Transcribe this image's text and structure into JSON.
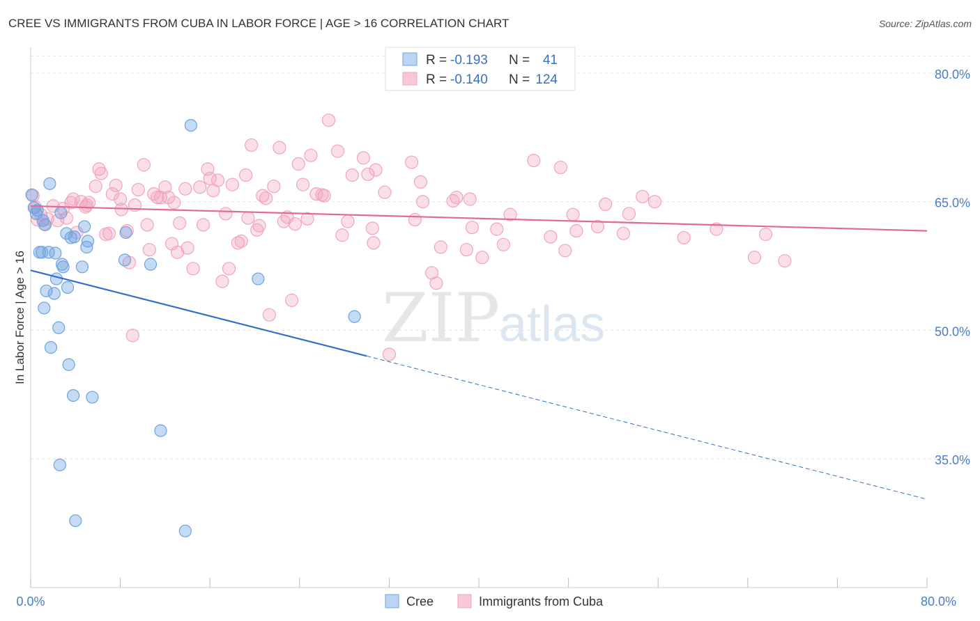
{
  "title": "CREE VS IMMIGRANTS FROM CUBA IN LABOR FORCE | AGE > 16 CORRELATION CHART",
  "source": "Source: ZipAtlas.com",
  "watermark": {
    "zip": "ZIP",
    "atlas": "atlas"
  },
  "legend": {
    "r_label": "R =",
    "n_label": "N =",
    "items": [
      {
        "name": "Cree",
        "r": "-0.193",
        "n": "41"
      },
      {
        "name": "Immigrants from Cuba",
        "r": "-0.140",
        "n": "124"
      }
    ]
  },
  "chart_data": {
    "type": "scatter",
    "title": "CREE VS IMMIGRANTS FROM CUBA IN LABOR FORCE | AGE > 16 CORRELATION CHART",
    "xlabel": "",
    "ylabel": "In Labor Force | Age > 16",
    "xlim": [
      0,
      80
    ],
    "ylim": [
      20,
      83
    ],
    "x_tick_labels": [
      "0.0%",
      "80.0%"
    ],
    "y_ticks": [
      35,
      50,
      65,
      80
    ],
    "y_tick_labels": [
      "35.0%",
      "50.0%",
      "65.0%",
      "80.0%"
    ],
    "colors": {
      "cree": "#6fa3e0",
      "cree_line": "#2f6fcd",
      "cuba": "#f2a3bd",
      "cuba_line": "#e06a94",
      "grid": "#e3e3e3",
      "tick": "#4a7cc9"
    },
    "series": [
      {
        "name": "Cree",
        "r": -0.193,
        "n": 41,
        "trend": {
          "x0": 0,
          "y0": 57.0,
          "x1": 30,
          "y1": 47.0,
          "dash_to_x": 80,
          "dash_to_y": 30.3
        },
        "points": [
          [
            0.1,
            65.8
          ],
          [
            0.3,
            64.3
          ],
          [
            0.5,
            63.6
          ],
          [
            0.8,
            59.1
          ],
          [
            1.0,
            59.1
          ],
          [
            1.2,
            52.6
          ],
          [
            1.3,
            62.3
          ],
          [
            1.4,
            54.6
          ],
          [
            1.6,
            59.1
          ],
          [
            1.7,
            67.1
          ],
          [
            1.8,
            48.0
          ],
          [
            2.1,
            54.3
          ],
          [
            2.2,
            59.0
          ],
          [
            2.3,
            56.0
          ],
          [
            2.5,
            50.3
          ],
          [
            2.6,
            34.3
          ],
          [
            2.7,
            63.7
          ],
          [
            2.8,
            57.7
          ],
          [
            2.9,
            57.4
          ],
          [
            3.2,
            61.3
          ],
          [
            3.3,
            55.0
          ],
          [
            3.4,
            46.0
          ],
          [
            3.6,
            60.8
          ],
          [
            3.8,
            42.4
          ],
          [
            4.0,
            27.8
          ],
          [
            4.6,
            57.4
          ],
          [
            4.8,
            62.1
          ],
          [
            5.0,
            59.7
          ],
          [
            5.1,
            60.4
          ],
          [
            5.5,
            42.2
          ],
          [
            8.4,
            58.2
          ],
          [
            8.5,
            61.4
          ],
          [
            10.7,
            57.7
          ],
          [
            11.6,
            38.3
          ],
          [
            13.8,
            26.6
          ],
          [
            14.3,
            73.9
          ],
          [
            20.3,
            56.0
          ],
          [
            28.9,
            51.6
          ],
          [
            0.6,
            64.0
          ],
          [
            1.1,
            62.8
          ],
          [
            3.9,
            60.9
          ]
        ]
      },
      {
        "name": "Immigrants from Cuba",
        "r": -0.14,
        "n": 124,
        "trend": {
          "x0": 0,
          "y0": 64.5,
          "x1": 80,
          "y1": 61.6
        },
        "points": [
          [
            0.2,
            65.7
          ],
          [
            0.4,
            64.4
          ],
          [
            0.6,
            62.9
          ],
          [
            0.9,
            63.5
          ],
          [
            1.2,
            62.4
          ],
          [
            1.5,
            63.0
          ],
          [
            2.0,
            64.5
          ],
          [
            2.4,
            62.8
          ],
          [
            2.9,
            64.2
          ],
          [
            3.2,
            63.1
          ],
          [
            3.6,
            64.9
          ],
          [
            3.8,
            65.3
          ],
          [
            4.1,
            61.4
          ],
          [
            4.5,
            65.0
          ],
          [
            4.9,
            64.4
          ],
          [
            5.2,
            64.9
          ],
          [
            5.8,
            66.8
          ],
          [
            6.1,
            68.8
          ],
          [
            6.3,
            68.3
          ],
          [
            6.7,
            61.2
          ],
          [
            7.0,
            61.3
          ],
          [
            7.3,
            65.9
          ],
          [
            7.6,
            66.9
          ],
          [
            8.0,
            65.3
          ],
          [
            8.1,
            64.1
          ],
          [
            8.6,
            61.6
          ],
          [
            8.8,
            57.9
          ],
          [
            9.1,
            49.4
          ],
          [
            9.3,
            64.6
          ],
          [
            9.6,
            66.4
          ],
          [
            10.1,
            69.3
          ],
          [
            10.4,
            62.3
          ],
          [
            10.6,
            59.4
          ],
          [
            11.0,
            65.9
          ],
          [
            11.3,
            65.5
          ],
          [
            11.6,
            65.5
          ],
          [
            12.0,
            66.7
          ],
          [
            12.3,
            65.5
          ],
          [
            12.6,
            60.1
          ],
          [
            13.1,
            59.1
          ],
          [
            13.3,
            62.5
          ],
          [
            13.8,
            66.5
          ],
          [
            14.5,
            57.2
          ],
          [
            15.1,
            66.7
          ],
          [
            15.4,
            62.3
          ],
          [
            15.8,
            68.8
          ],
          [
            16.0,
            67.7
          ],
          [
            16.3,
            66.3
          ],
          [
            16.7,
            67.5
          ],
          [
            17.1,
            55.7
          ],
          [
            17.4,
            63.6
          ],
          [
            17.7,
            57.2
          ],
          [
            18.0,
            67.0
          ],
          [
            18.5,
            60.2
          ],
          [
            18.8,
            60.4
          ],
          [
            19.2,
            68.1
          ],
          [
            19.4,
            63.1
          ],
          [
            19.7,
            71.6
          ],
          [
            20.2,
            61.7
          ],
          [
            20.4,
            62.2
          ],
          [
            20.7,
            65.7
          ],
          [
            21.0,
            65.4
          ],
          [
            21.3,
            51.8
          ],
          [
            21.7,
            66.8
          ],
          [
            22.2,
            71.3
          ],
          [
            22.6,
            62.7
          ],
          [
            22.9,
            63.2
          ],
          [
            23.3,
            53.5
          ],
          [
            23.6,
            62.4
          ],
          [
            23.9,
            69.4
          ],
          [
            24.3,
            67.0
          ],
          [
            24.7,
            63.0
          ],
          [
            25.0,
            70.4
          ],
          [
            25.5,
            65.9
          ],
          [
            26.2,
            65.7
          ],
          [
            26.6,
            74.5
          ],
          [
            27.4,
            70.9
          ],
          [
            27.8,
            61.1
          ],
          [
            28.3,
            62.7
          ],
          [
            28.7,
            68.1
          ],
          [
            29.7,
            70.1
          ],
          [
            30.1,
            68.2
          ],
          [
            30.5,
            61.9
          ],
          [
            30.6,
            60.2
          ],
          [
            30.8,
            68.7
          ],
          [
            31.6,
            66.1
          ],
          [
            32.0,
            47.2
          ],
          [
            34.0,
            69.6
          ],
          [
            34.3,
            62.9
          ],
          [
            34.8,
            67.3
          ],
          [
            35.0,
            65.0
          ],
          [
            35.8,
            56.7
          ],
          [
            36.2,
            55.5
          ],
          [
            36.6,
            59.7
          ],
          [
            37.7,
            65.1
          ],
          [
            38.0,
            65.5
          ],
          [
            38.9,
            59.4
          ],
          [
            39.2,
            65.3
          ],
          [
            39.4,
            62.0
          ],
          [
            40.3,
            58.5
          ],
          [
            41.6,
            61.8
          ],
          [
            42.2,
            60.0
          ],
          [
            42.8,
            63.5
          ],
          [
            44.9,
            69.8
          ],
          [
            46.4,
            60.9
          ],
          [
            47.3,
            69.0
          ],
          [
            47.7,
            59.3
          ],
          [
            48.4,
            63.5
          ],
          [
            48.7,
            61.6
          ],
          [
            50.6,
            62.1
          ],
          [
            51.3,
            64.7
          ],
          [
            52.9,
            61.3
          ],
          [
            53.4,
            63.6
          ],
          [
            54.6,
            65.6
          ],
          [
            55.7,
            65.0
          ],
          [
            58.3,
            60.8
          ],
          [
            61.2,
            61.8
          ],
          [
            64.6,
            58.5
          ],
          [
            65.6,
            61.2
          ],
          [
            67.3,
            58.1
          ],
          [
            5.0,
            64.6
          ],
          [
            12.8,
            64.9
          ],
          [
            26.0,
            65.8
          ],
          [
            14.0,
            59.6
          ]
        ]
      }
    ]
  }
}
